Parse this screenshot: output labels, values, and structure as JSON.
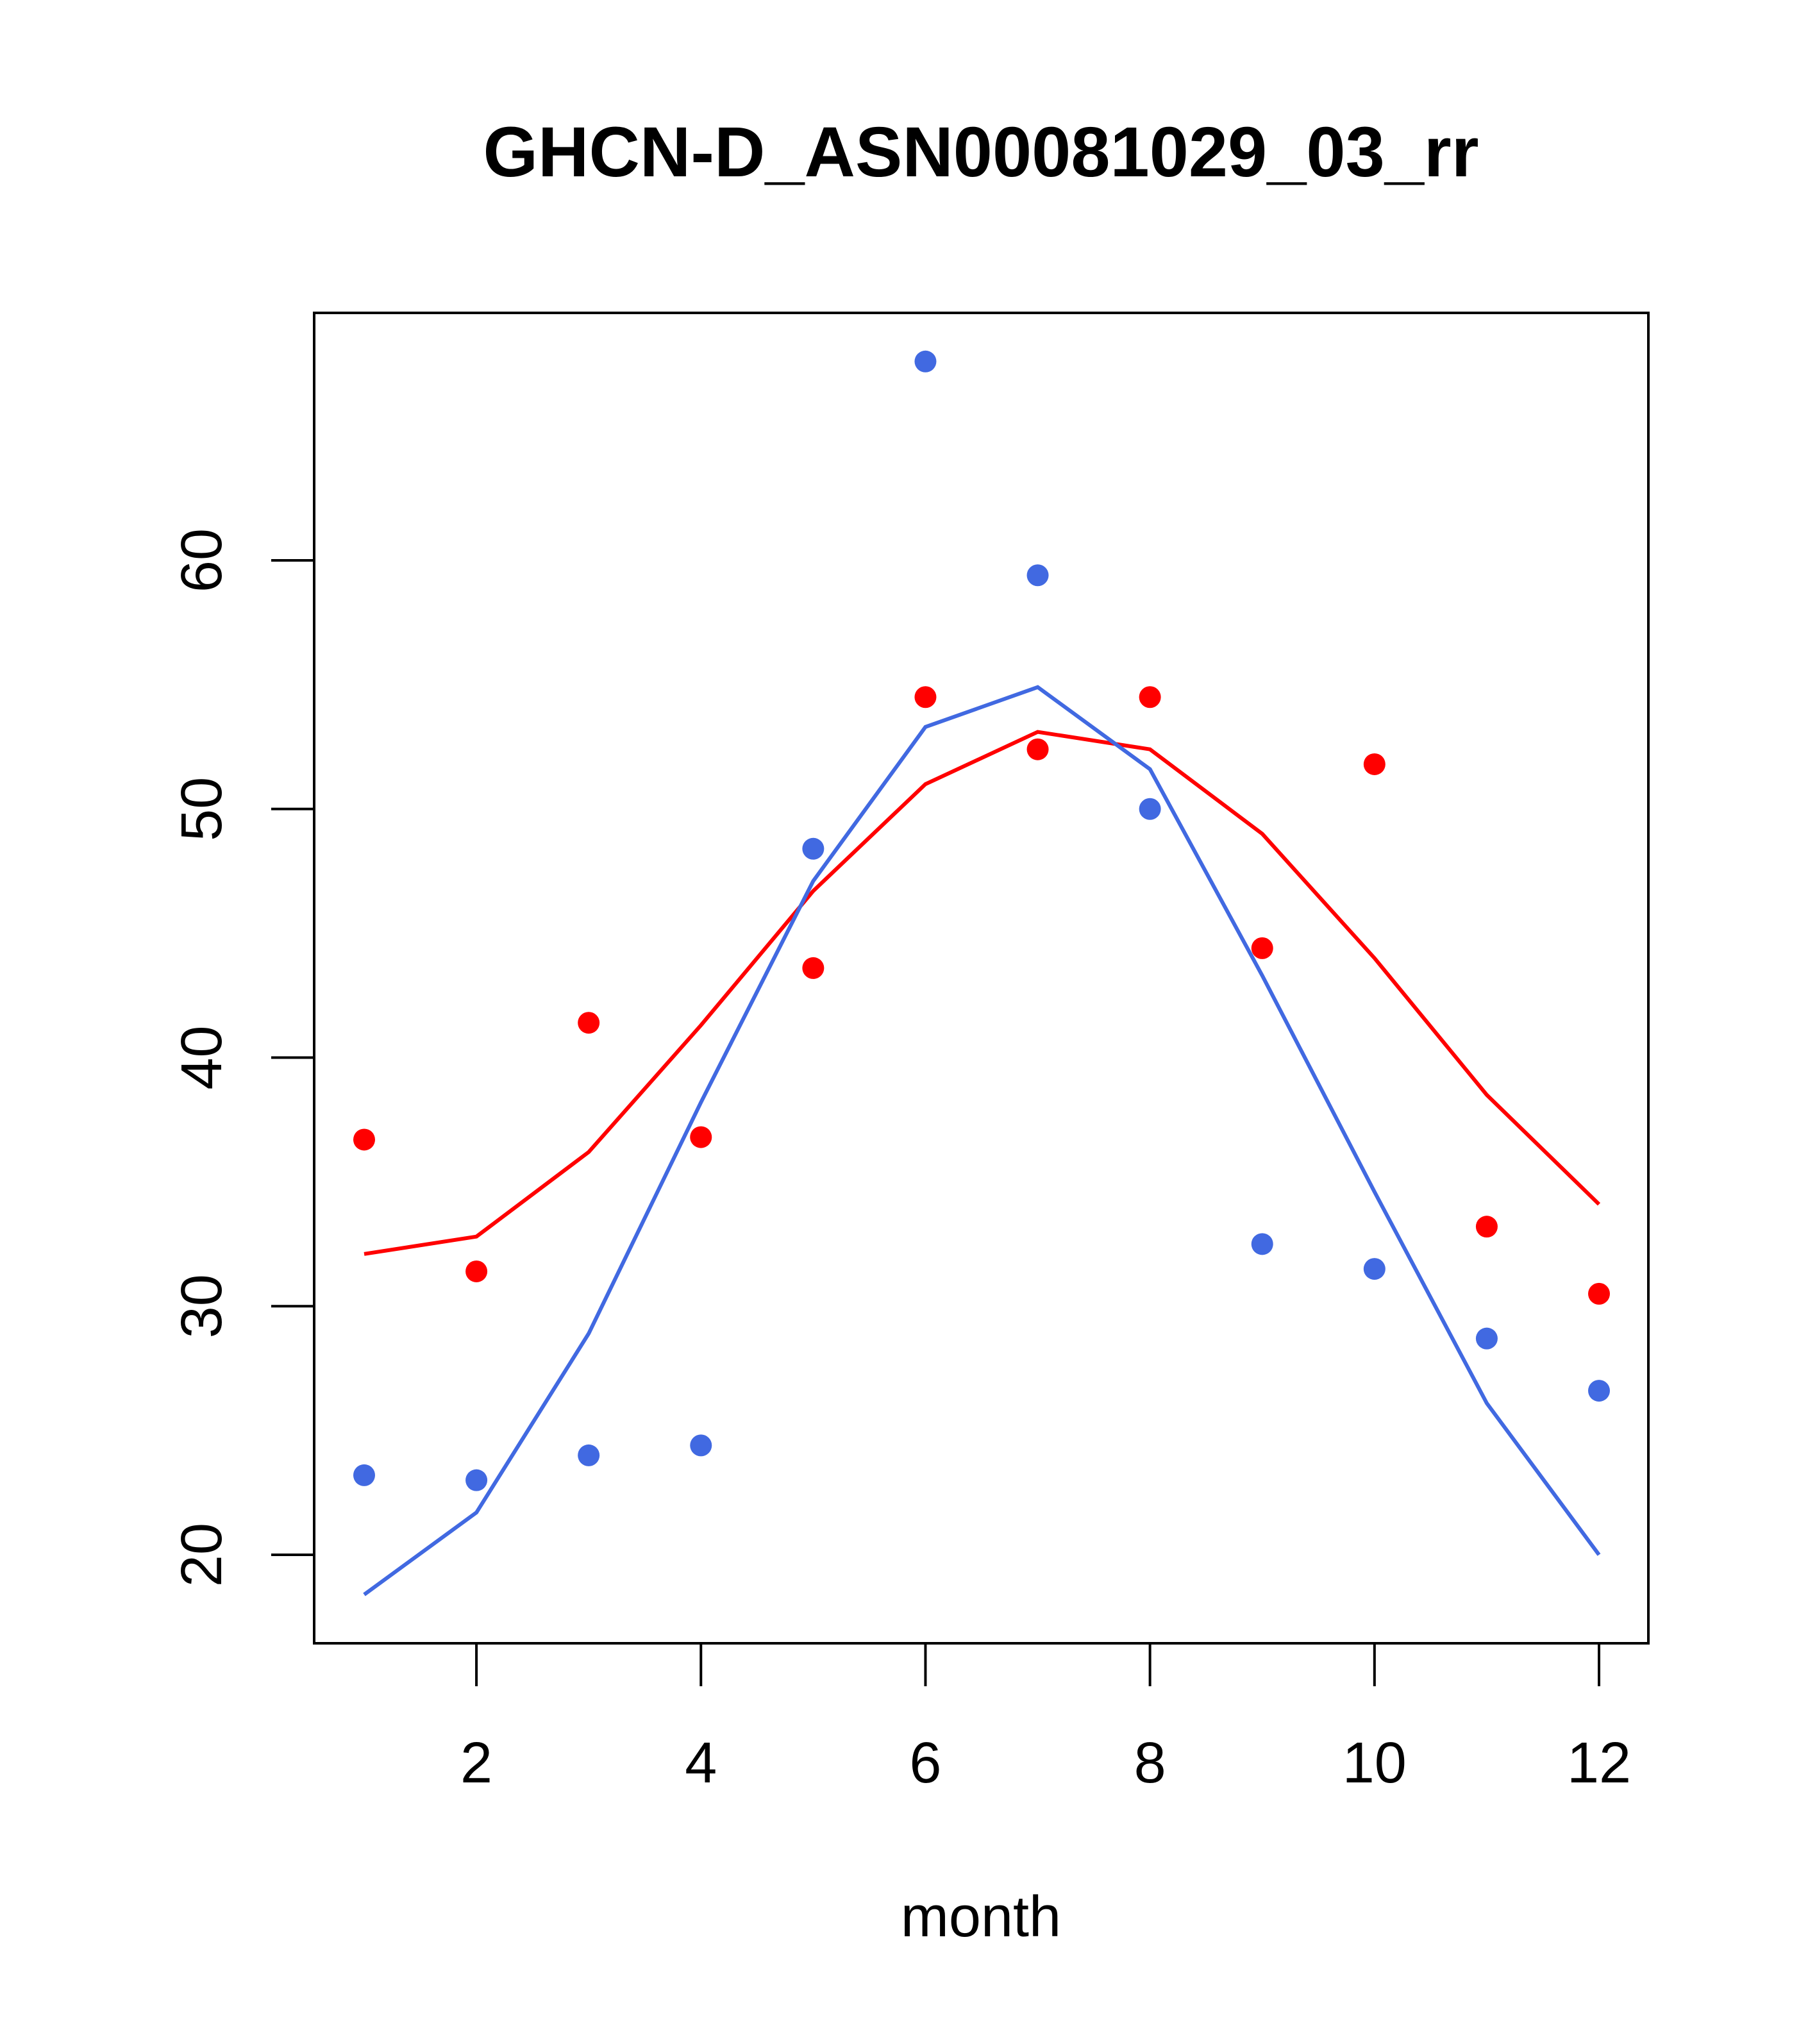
{
  "chart_data": {
    "type": "line",
    "title": "GHCN-D_ASN00081029_03_rr",
    "xlabel": "month",
    "ylabel": "",
    "xlim": [
      0.56,
      12.56
    ],
    "ylim": [
      16.5,
      70
    ],
    "xticks": [
      2,
      4,
      6,
      8,
      10,
      12
    ],
    "yticks": [
      20,
      30,
      40,
      50,
      60
    ],
    "grid": false,
    "x": [
      1,
      2,
      3,
      4,
      5,
      6,
      7,
      8,
      9,
      10,
      11,
      12
    ],
    "series": [
      {
        "name": "red points",
        "type": "scatter",
        "color": "#ff0000",
        "values": [
          36.7,
          31.4,
          41.4,
          36.8,
          43.6,
          54.5,
          52.4,
          54.5,
          44.4,
          51.8,
          33.2,
          30.5
        ]
      },
      {
        "name": "red line",
        "type": "line",
        "color": "#ff0000",
        "values": [
          32.1,
          32.8,
          36.2,
          41.3,
          46.7,
          51.0,
          53.1,
          52.4,
          49.0,
          44.0,
          38.5,
          34.1
        ]
      },
      {
        "name": "blue points",
        "type": "scatter",
        "color": "#4169e1",
        "values": [
          23.2,
          23.0,
          24.0,
          24.4,
          48.4,
          68.0,
          59.4,
          50.0,
          32.5,
          31.5,
          28.7,
          26.6
        ]
      },
      {
        "name": "blue line",
        "type": "line",
        "color": "#4169e1",
        "values": [
          18.4,
          21.7,
          28.9,
          38.2,
          47.1,
          53.3,
          54.9,
          51.6,
          43.3,
          34.6,
          26.1,
          20.0
        ]
      }
    ]
  }
}
